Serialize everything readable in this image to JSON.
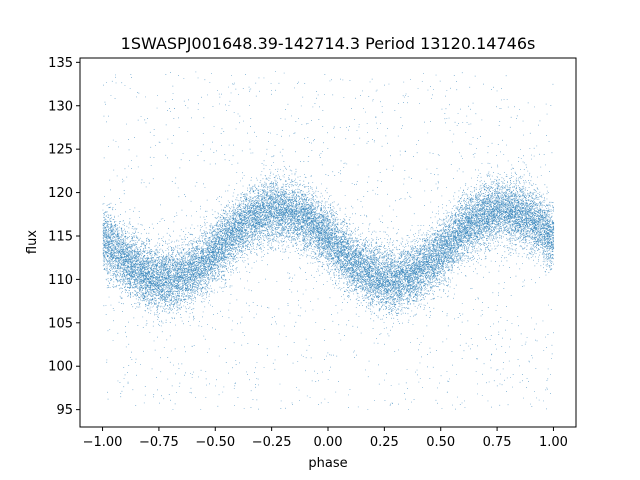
{
  "chart_data": {
    "type": "scatter",
    "title": "1SWASPJ001648.39-142714.3 Period 13120.14746s",
    "xlabel": "phase",
    "ylabel": "flux",
    "xlim": [
      -1.1,
      1.1
    ],
    "ylim": [
      93,
      135.5
    ],
    "xticks": [
      -1.0,
      -0.75,
      -0.5,
      -0.25,
      0.0,
      0.25,
      0.5,
      0.75,
      1.0
    ],
    "xtick_labels": [
      "−1.00",
      "−0.75",
      "−0.50",
      "−0.25",
      "0.00",
      "0.25",
      "0.50",
      "0.75",
      "1.00"
    ],
    "yticks": [
      95,
      100,
      105,
      110,
      115,
      120,
      125,
      130,
      135
    ],
    "ytick_labels": [
      "95",
      "100",
      "105",
      "110",
      "115",
      "120",
      "125",
      "130",
      "135"
    ],
    "grid": false,
    "marker_color": "#1f77b4",
    "series": [
      {
        "model": "sinusoid",
        "phase_range": [
          -1.0,
          1.0
        ],
        "mean_flux": 114.0,
        "amplitude": 4.0,
        "flux_at_maximum_phases": [
          -0.22,
          0.78
        ],
        "flux_at_minimum_phases": [
          -0.72,
          0.28
        ],
        "core_scatter": 1.8,
        "outlier_flux_range": [
          95,
          134
        ],
        "approx_points": 60000
      }
    ]
  }
}
